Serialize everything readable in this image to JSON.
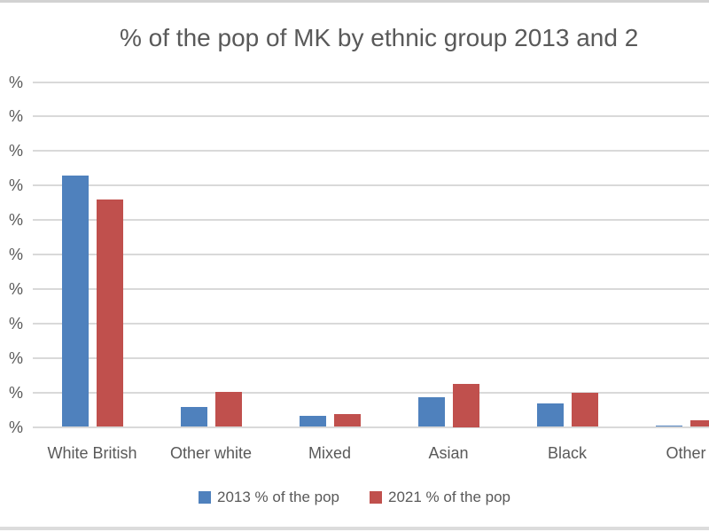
{
  "chart_data": {
    "type": "bar",
    "title": "% of the pop of MK by ethnic group 2013 and 2",
    "categories": [
      "White British",
      "Other white",
      "Mixed",
      "Asian",
      "Black",
      "Other"
    ],
    "series": [
      {
        "name": "2013 % of the pop",
        "color": "#4F81BD",
        "values": [
          73,
          5.7,
          3.1,
          8.6,
          6.7,
          0.5
        ]
      },
      {
        "name": "2021 % of the pop",
        "color": "#C0504D",
        "values": [
          66,
          10.1,
          3.7,
          12.5,
          9.9,
          1.8
        ]
      }
    ],
    "xlabel": "",
    "ylabel": "",
    "ylim": [
      0,
      100
    ],
    "y_tick_step": 10,
    "y_tick_label_visible": "%",
    "grid": true,
    "legend_position": "bottom"
  },
  "colors": {
    "series_2013": "#4F81BD",
    "series_2021": "#C0504D",
    "gridline": "#D9D9D9",
    "text": "#595959",
    "background": "#FFFFFF",
    "frame_edge": "#D2D2D2"
  }
}
